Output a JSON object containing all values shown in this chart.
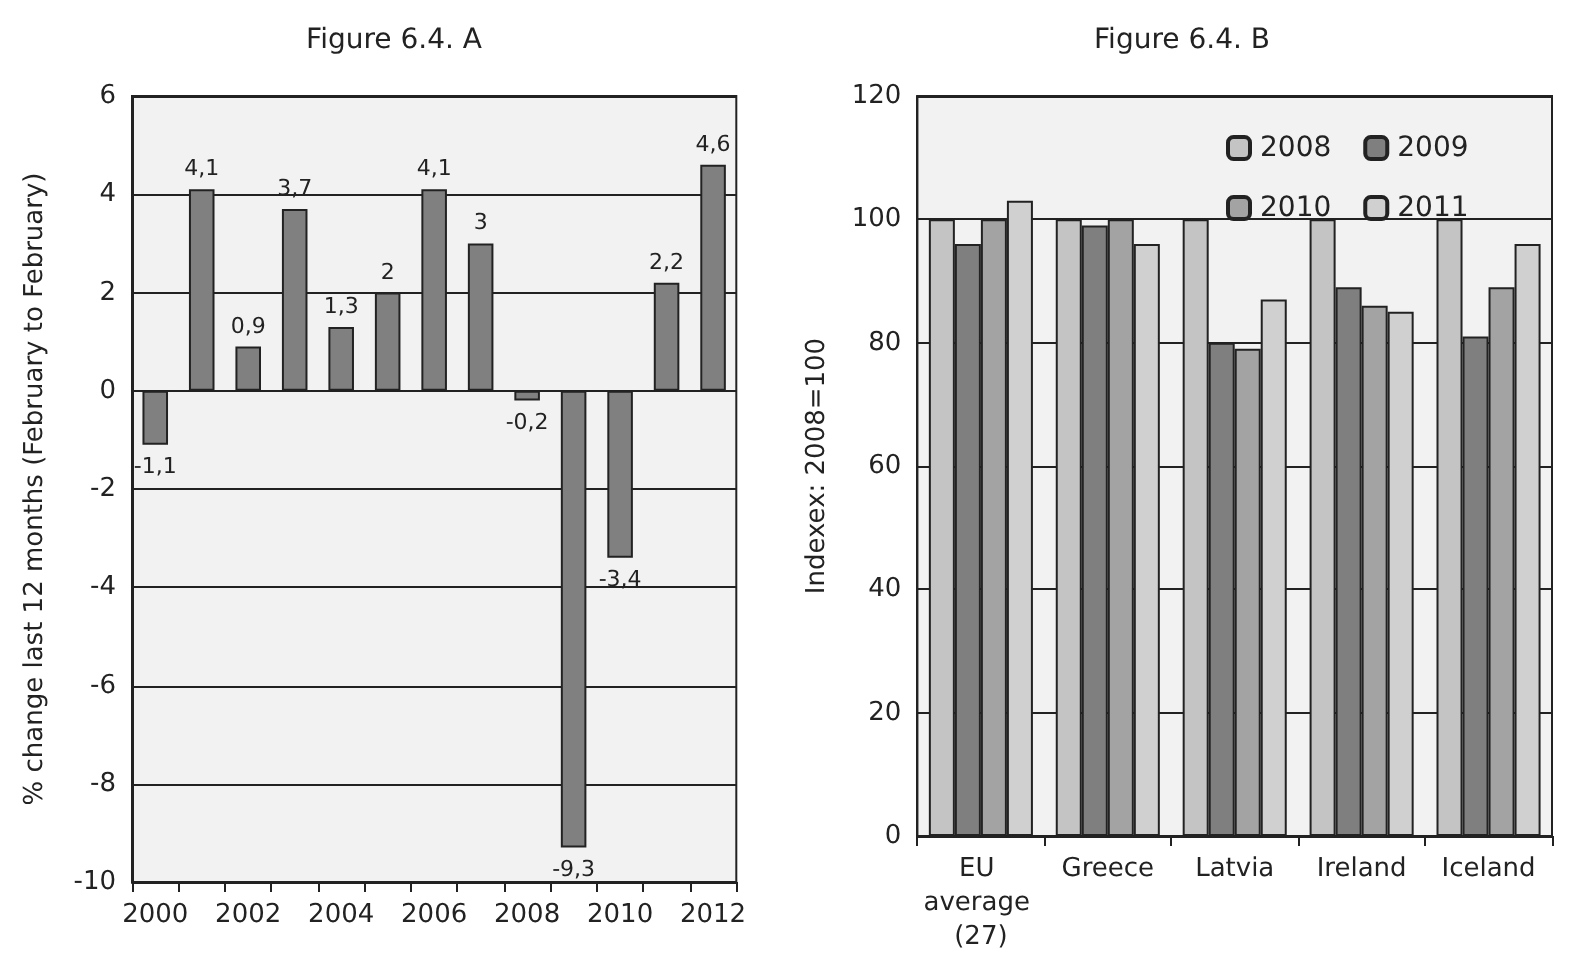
{
  "chart_data": [
    {
      "type": "bar",
      "title": "Figure 6.4. A",
      "ylabel": "% change last 12 months (February to February)",
      "categories": [
        "2000",
        null,
        "2002",
        null,
        "2004",
        null,
        "2006",
        null,
        "2008",
        null,
        "2010",
        null,
        "2012"
      ],
      "series": [
        {
          "color": "#808080",
          "values": [
            -1.1,
            4.1,
            0.9,
            3.7,
            1.3,
            2,
            4.1,
            3,
            -0.2,
            -9.3,
            -3.4,
            2.2,
            4.6
          ],
          "value_labels": [
            "-1,1",
            "4,1",
            "0,9",
            "3,7",
            "1,3",
            "2",
            "4,1",
            "3",
            "-0,2",
            "-9,3",
            "-3,4",
            "2,2",
            "4,6"
          ]
        }
      ],
      "ylim": [
        -10,
        6
      ],
      "yticks": [
        -10,
        -8,
        -6,
        -4,
        -2,
        0,
        2,
        4,
        6
      ],
      "grid": "y",
      "legend": false
    },
    {
      "type": "bar",
      "title": "Figure 6.4. B",
      "ylabel": "Indexex: 2008=100",
      "categories": [
        "EU average (27)",
        "Greece",
        "Latvia",
        "Ireland",
        "Iceland"
      ],
      "series": [
        {
          "name": "2008",
          "color": "#c4c4c4",
          "values": [
            100,
            100,
            100,
            100,
            100
          ]
        },
        {
          "name": "2009",
          "color": "#7f7f7f",
          "values": [
            96,
            99,
            80,
            89,
            81
          ]
        },
        {
          "name": "2010",
          "color": "#a3a3a3",
          "values": [
            100,
            100,
            79,
            86,
            89
          ]
        },
        {
          "name": "2011",
          "color": "#d0d0d0",
          "values": [
            103,
            96,
            87,
            85,
            96
          ]
        }
      ],
      "ylim": [
        0,
        120
      ],
      "yticks": [
        0,
        20,
        40,
        60,
        80,
        100,
        120
      ],
      "grid": "y",
      "legend": "top"
    }
  ]
}
